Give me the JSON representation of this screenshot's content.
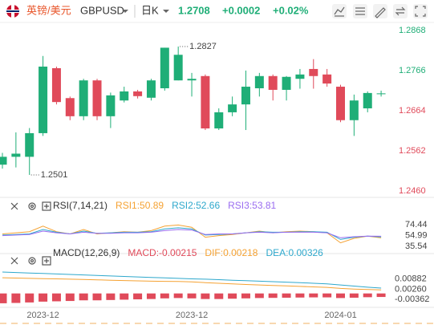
{
  "header": {
    "pair": "英镑/美元",
    "symbol": "GBPUSD",
    "period": "日K",
    "price": "1.2708",
    "change": "+0.0002",
    "change_pct": "+0.02%"
  },
  "chart_data": [
    {
      "type": "candlestick",
      "categories": [
        null,
        null,
        null,
        "2023-12",
        null,
        null,
        null,
        null,
        null,
        null,
        null,
        null,
        null,
        null,
        "2023-12",
        null,
        null,
        null,
        null,
        null,
        null,
        null,
        null,
        null,
        null,
        "2024-01",
        null,
        null,
        null
      ],
      "open": [
        1.2527,
        1.2547,
        1.2547,
        1.2607,
        1.2772,
        1.2696,
        1.265,
        1.2741,
        1.265,
        1.269,
        1.2713,
        1.2697,
        1.2721,
        1.2741,
        1.2741,
        1.2752,
        1.2619,
        1.266,
        1.268,
        1.2721,
        1.2752,
        1.2717,
        1.2745,
        1.277,
        1.2756,
        1.2725,
        1.264,
        1.267,
        1.2706
      ],
      "high": [
        1.2557,
        1.2609,
        1.262,
        1.2803,
        1.2776,
        1.27,
        1.2745,
        1.2745,
        1.271,
        1.2725,
        1.2717,
        1.2745,
        1.2824,
        1.2827,
        1.276,
        1.2756,
        1.267,
        1.27,
        1.2766,
        1.276,
        1.2756,
        1.2752,
        1.277,
        1.2795,
        1.277,
        1.273,
        1.2705,
        1.2713,
        1.2715
      ],
      "low": [
        1.2517,
        1.252,
        1.2501,
        1.26,
        1.268,
        1.264,
        1.264,
        1.264,
        1.262,
        1.2685,
        1.2695,
        1.269,
        1.2715,
        1.2741,
        1.27,
        1.2615,
        1.2615,
        1.265,
        1.2615,
        1.27,
        1.269,
        1.269,
        1.272,
        1.272,
        1.2725,
        1.2635,
        1.26,
        1.266,
        1.27
      ],
      "close": [
        1.2547,
        1.2555,
        1.2607,
        1.2776,
        1.2686,
        1.265,
        1.2741,
        1.265,
        1.2703,
        1.2713,
        1.2701,
        1.2741,
        1.2824,
        1.2806,
        1.2745,
        1.2619,
        1.266,
        1.268,
        1.2725,
        1.2752,
        1.2717,
        1.275,
        1.2756,
        1.2752,
        1.2733,
        1.264,
        1.269,
        1.2709,
        1.2708
      ],
      "up_color": "#1fae77",
      "down_color": "#e04a5a",
      "ylim": [
        1.245,
        1.2884
      ],
      "yticks": [
        1.2868,
        1.2766,
        1.2664,
        1.2562,
        {
          "value": 1.246,
          "label": "1.2460"
        }
      ],
      "annotations": {
        "max": "1.2827",
        "min": "1.2501"
      }
    },
    {
      "type": "line",
      "title": "RSI(7,14,21)",
      "series": [
        {
          "name": "RSI1:50.89",
          "color": "#f5a233",
          "values": [
            58,
            60,
            62,
            72,
            62,
            58,
            66,
            58,
            60,
            62,
            61,
            64,
            72,
            74,
            70,
            52,
            55,
            57,
            60,
            63,
            60,
            62,
            63,
            62,
            60,
            42,
            50,
            54,
            50.89
          ]
        },
        {
          "name": "RSI2:52.66",
          "color": "#2ea8cc",
          "values": [
            56,
            57,
            58,
            66,
            61,
            58,
            63,
            59,
            60,
            61,
            61,
            62,
            67,
            69,
            67,
            56,
            57,
            58,
            60,
            62,
            61,
            61,
            62,
            62,
            61,
            48,
            52,
            54,
            52.66
          ]
        },
        {
          "name": "RSI3:53.81",
          "color": "#9a6cf0",
          "values": [
            55,
            56,
            57,
            63,
            60,
            58,
            61,
            59,
            59,
            60,
            60,
            61,
            64,
            66,
            65,
            57,
            58,
            58,
            60,
            61,
            60,
            61,
            61,
            61,
            60,
            51,
            53,
            54,
            53.81
          ]
        }
      ],
      "ylim": [
        24,
        92
      ],
      "yticks": [
        74.44,
        54.99,
        35.54
      ]
    },
    {
      "type": "macd",
      "title": "MACD(12,26,9)",
      "series": [
        {
          "name": "MACD:-0.00215",
          "color": "#e04a5a",
          "kind": "bar",
          "values": [
            -0.006,
            -0.0058,
            -0.0055,
            -0.005,
            -0.0048,
            -0.0046,
            -0.0042,
            -0.0042,
            -0.004,
            -0.0038,
            -0.0036,
            -0.0034,
            -0.003,
            -0.0028,
            -0.003,
            -0.0034,
            -0.0034,
            -0.0032,
            -0.003,
            -0.0028,
            -0.0027,
            -0.0026,
            -0.0025,
            -0.0024,
            -0.0024,
            -0.0028,
            -0.0026,
            -0.0023,
            -0.00215
          ]
        },
        {
          "name": "DIF:0.00218",
          "color": "#f5a233",
          "kind": "line",
          "values": [
            0.0096,
            0.0094,
            0.0092,
            0.009,
            0.0089,
            0.0087,
            0.0085,
            0.0083,
            0.0081,
            0.0079,
            0.0077,
            0.0075,
            0.0074,
            0.0073,
            0.0071,
            0.0066,
            0.0062,
            0.0058,
            0.0055,
            0.0052,
            0.0049,
            0.0046,
            0.0043,
            0.004,
            0.0037,
            0.0031,
            0.0027,
            0.0024,
            0.00218
          ]
        },
        {
          "name": "DEA:0.00326",
          "color": "#2ea8cc",
          "kind": "line",
          "values": [
            0.0131,
            0.0128,
            0.0125,
            0.0122,
            0.0119,
            0.0116,
            0.0113,
            0.011,
            0.0107,
            0.0104,
            0.0101,
            0.0098,
            0.0095,
            0.0092,
            0.0089,
            0.0087,
            0.0084,
            0.0081,
            0.0078,
            0.0075,
            0.0072,
            0.0069,
            0.0066,
            0.0062,
            0.0058,
            0.0052,
            0.0045,
            0.0038,
            0.00326
          ]
        }
      ],
      "ylim": [
        -0.008,
        0.017
      ],
      "yticks": [
        0.00882,
        {
          "value": 0.0026,
          "label": "0.00260"
        },
        -0.00362
      ]
    }
  ]
}
